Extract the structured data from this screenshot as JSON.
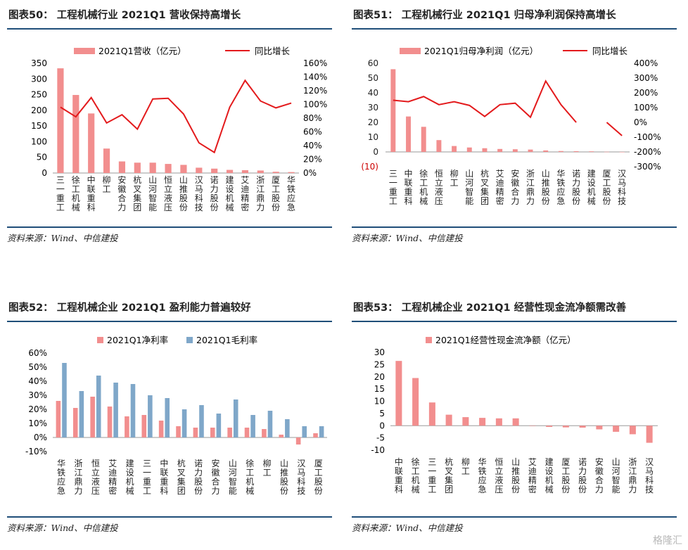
{
  "colors": {
    "bar_pink": "#f28e8e",
    "bar_blue": "#7fa7c9",
    "line_red": "#e31a1c",
    "rule": "#1f4e79",
    "neg_label": "#cc0000"
  },
  "source_text": "资料来源：Wind、中信建投",
  "watermark": "格隆汇",
  "chart_data": [
    {
      "id": "fig50",
      "title": "图表50：   工程机械行业 2021Q1 营收保持高增长",
      "type": "bar+line",
      "categories": [
        "三一重工",
        "徐工机械",
        "中联重科",
        "柳工",
        "安徽合力",
        "杭叉集团",
        "山河智能",
        "恒立液压",
        "山推股份",
        "汉马科技",
        "诺力股份",
        "建设机械",
        "艾迪精密",
        "浙江鼎力",
        "厦工股份",
        "华铁应急"
      ],
      "series": [
        {
          "name": "2021Q1营收（亿元）",
          "axis": "left",
          "values": [
            334,
            249,
            190,
            78,
            37,
            33,
            33,
            29,
            26,
            17,
            14,
            10,
            9,
            8,
            4,
            3
          ]
        },
        {
          "name": "同比增长",
          "axis": "right",
          "values": [
            0.96,
            0.82,
            1.1,
            0.73,
            0.85,
            0.64,
            1.08,
            1.09,
            0.86,
            0.44,
            0.3,
            0.96,
            1.35,
            1.05,
            0.95,
            1.02
          ]
        }
      ],
      "ylim_left": [
        0,
        350
      ],
      "yticks_left": [
        "0",
        "50",
        "100",
        "150",
        "200",
        "250",
        "300",
        "350"
      ],
      "ylim_right": [
        0,
        1.6
      ],
      "yticks_right": [
        "0%",
        "20%",
        "40%",
        "60%",
        "80%",
        "100%",
        "120%",
        "140%",
        "160%"
      ],
      "grid": false,
      "legend": "top"
    },
    {
      "id": "fig51",
      "title": "图表51：   工程机械行业 2021Q1 归母净利润保持高增长",
      "type": "bar+line",
      "categories": [
        "三一重工",
        "中联重科",
        "徐工机械",
        "恒立液压",
        "柳工",
        "山河智能",
        "杭叉集团",
        "艾迪精密",
        "安徽合力",
        "浙江鼎力",
        "山推股份",
        "华铁应急",
        "诺力股份",
        "建设机械",
        "厦工股份",
        "汉马科技"
      ],
      "series": [
        {
          "name": "2021Q1归母净利润（亿元）",
          "axis": "left",
          "values": [
            56,
            24,
            17,
            8,
            4,
            3,
            2.5,
            2,
            1.8,
            1.6,
            1,
            0.6,
            0.5,
            0.4,
            0.1,
            0
          ]
        },
        {
          "name": "同比增长",
          "axis": "right",
          "values": [
            1.5,
            1.4,
            1.75,
            1.2,
            1.4,
            1.15,
            0.4,
            1.2,
            1.3,
            0.35,
            2.8,
            1.2,
            0,
            null,
            0,
            -0.9
          ]
        }
      ],
      "ylim_left": [
        -10,
        60
      ],
      "yticks_left": [
        "(10)",
        "0",
        "10",
        "20",
        "30",
        "40",
        "50",
        "60"
      ],
      "ylim_right": [
        -3,
        4
      ],
      "yticks_right": [
        "-300%",
        "-200%",
        "-100%",
        "0%",
        "100%",
        "200%",
        "300%",
        "400%"
      ],
      "grid": false,
      "legend": "top"
    },
    {
      "id": "fig52",
      "title": "图表52：   工程机械企业 2021Q1 盈利能力普遍较好",
      "type": "bar",
      "categories": [
        "华铁应急",
        "浙江鼎力",
        "恒立液压",
        "艾迪精密",
        "建设机械",
        "三一重工",
        "中联重科",
        "杭叉集团",
        "诺力股份",
        "安徽合力",
        "山河智能",
        "徐工机械",
        "柳工",
        "山推股份",
        "汉马科技",
        "厦工股份"
      ],
      "series": [
        {
          "name": "2021Q1净利率",
          "values": [
            0.26,
            0.21,
            0.29,
            0.22,
            0.15,
            0.16,
            0.12,
            0.08,
            0.07,
            0.07,
            0.07,
            0.07,
            0.06,
            0.02,
            -0.05,
            0.03
          ]
        },
        {
          "name": "2021Q1毛利率",
          "values": [
            0.53,
            0.33,
            0.44,
            0.39,
            0.38,
            0.3,
            0.28,
            0.2,
            0.23,
            0.17,
            0.27,
            0.16,
            0.19,
            0.13,
            0.08,
            0.08
          ]
        }
      ],
      "ylim": [
        -0.1,
        0.6
      ],
      "yticks": [
        "-10%",
        "0%",
        "10%",
        "20%",
        "30%",
        "40%",
        "50%",
        "60%"
      ],
      "grid": false,
      "legend": "top"
    },
    {
      "id": "fig53",
      "title": "图表53：   工程机械企业 2021Q1 经营性现金流净额需改善",
      "type": "bar",
      "categories": [
        "中联重科",
        "徐工机械",
        "三一重工",
        "杭叉集团",
        "柳工",
        "华铁应急",
        "恒立液压",
        "山推股份",
        "艾迪精密",
        "建设机械",
        "厦工股份",
        "诺力股份",
        "安徽合力",
        "山河智能",
        "浙江鼎力",
        "汉马科技"
      ],
      "series": [
        {
          "name": "2021Q1经营性现金流净额（亿元）",
          "values": [
            26.5,
            19.5,
            9.5,
            4.5,
            3.5,
            3.2,
            3.0,
            3.0,
            0,
            -0.5,
            -0.7,
            -0.8,
            -1.5,
            -2.5,
            -3.5,
            -7
          ]
        }
      ],
      "ylim": [
        -10,
        30
      ],
      "yticks": [
        "-10",
        "-5",
        "0",
        "5",
        "10",
        "15",
        "20",
        "25",
        "30"
      ],
      "grid": false,
      "legend": "top"
    }
  ]
}
